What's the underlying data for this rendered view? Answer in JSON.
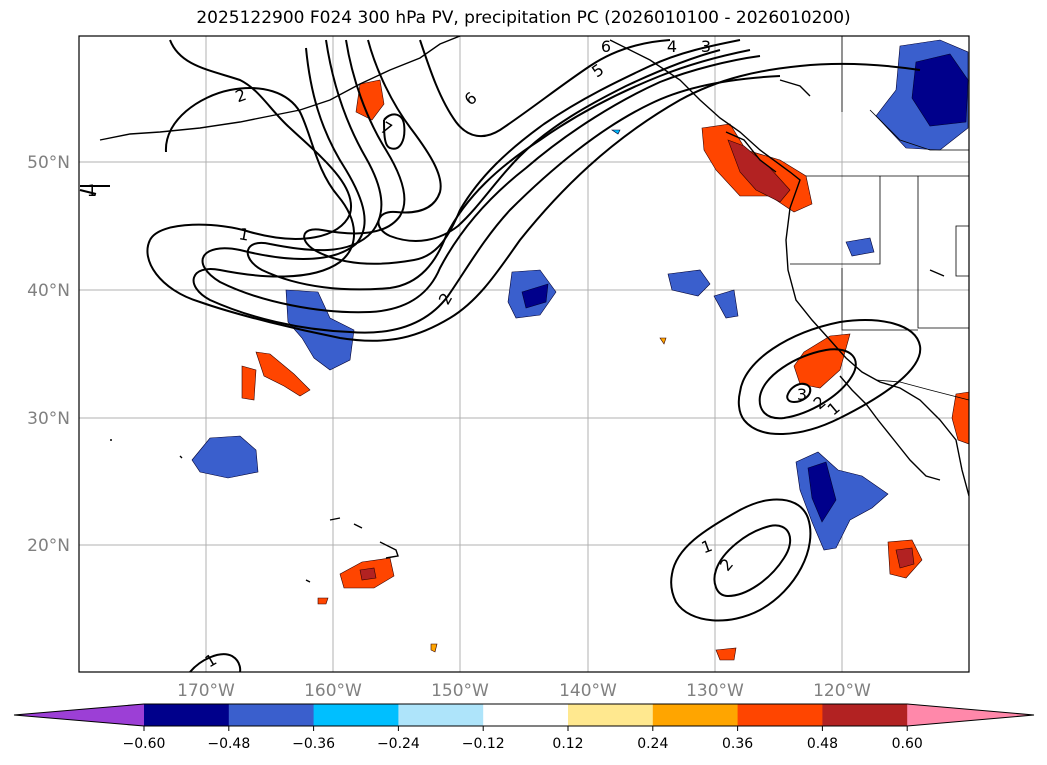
{
  "title": "2025122900 F024 300 hPa PV, precipitation PC (2026010100 - 2026010200)",
  "lon_labels": [
    "170°W",
    "160°W",
    "150°W",
    "140°W",
    "130°W",
    "120°W"
  ],
  "lat_labels": [
    "50°N",
    "40°N",
    "30°N",
    "20°N"
  ],
  "colorbar": {
    "ticks": [
      "−0.60",
      "−0.48",
      "−0.36",
      "−0.24",
      "−0.12",
      "0.12",
      "0.24",
      "0.36",
      "0.48",
      "0.60"
    ],
    "colors": [
      "#9c3fd6",
      "#00008b",
      "#3a5fcd",
      "#00bfff",
      "#aee4fa",
      "#ffffff",
      "#ffe88f",
      "#ffa500",
      "#ff4500",
      "#b22222",
      "#ff88aa"
    ]
  },
  "contour_labels": [
    "2",
    "6",
    "7",
    "5",
    "6",
    "4",
    "3",
    "1",
    "1",
    "2",
    "3",
    "2",
    "1",
    "1",
    "2",
    "1"
  ]
}
